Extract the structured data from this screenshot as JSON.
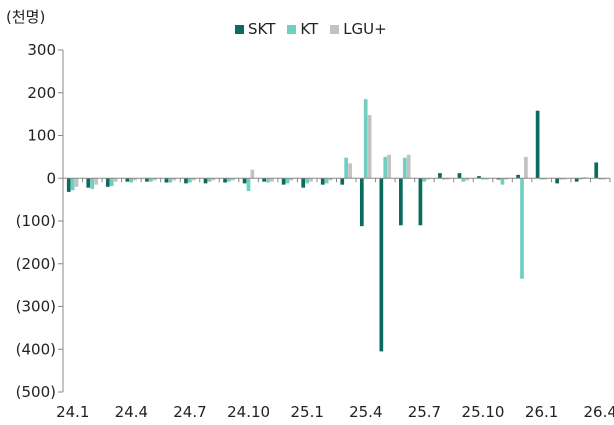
{
  "chart_data": {
    "type": "bar",
    "unit_label": "(천명)",
    "colors": {
      "SKT": "#0c6b5f",
      "KT": "#6fd0c2",
      "LGU+": "#c2c2c2"
    },
    "ylim": [
      -500,
      300
    ],
    "yticks": [
      300,
      200,
      100,
      0,
      -100,
      -200,
      -300,
      -400,
      -500
    ],
    "ytick_labels": [
      "300",
      "200",
      "100",
      "0",
      "(100)",
      "(200)",
      "(300)",
      "(400)",
      "(500)"
    ],
    "x_tick_labels": [
      "24.1",
      "24.4",
      "24.7",
      "24.10",
      "25.1",
      "25.4",
      "25.7",
      "25.10",
      "26.1",
      "26.4"
    ],
    "categories": [
      "24.1",
      "24.2",
      "24.3",
      "24.4",
      "24.5",
      "24.6",
      "24.7",
      "24.8",
      "24.9",
      "24.10",
      "24.11",
      "24.12",
      "25.1",
      "25.2",
      "25.3",
      "25.4",
      "25.5",
      "25.6",
      "25.7",
      "25.8",
      "25.9",
      "25.10",
      "25.11",
      "25.12",
      "26.1",
      "26.2",
      "26.3",
      "26.4"
    ],
    "series": [
      {
        "name": "SKT",
        "values": [
          -32,
          -22,
          -20,
          -8,
          -8,
          -10,
          -12,
          -12,
          -10,
          -12,
          -8,
          -15,
          -22,
          -15,
          -15,
          -112,
          -405,
          -110,
          -110,
          12,
          12,
          5,
          -3,
          8,
          158,
          -12,
          -8,
          37
        ]
      },
      {
        "name": "KT",
        "values": [
          -28,
          -25,
          -18,
          -10,
          -8,
          -10,
          -10,
          -8,
          -8,
          -30,
          -10,
          -12,
          -12,
          -12,
          48,
          185,
          50,
          48,
          -8,
          -3,
          -8,
          -3,
          -15,
          -235,
          -3,
          -3,
          -3,
          -3
        ]
      },
      {
        "name": "LGU+",
        "values": [
          -20,
          -15,
          -8,
          -5,
          -5,
          -5,
          -5,
          -5,
          -5,
          20,
          -8,
          -5,
          -8,
          -5,
          35,
          148,
          55,
          55,
          -3,
          -3,
          -5,
          -3,
          -3,
          50,
          -3,
          -3,
          3,
          -3
        ]
      }
    ]
  }
}
